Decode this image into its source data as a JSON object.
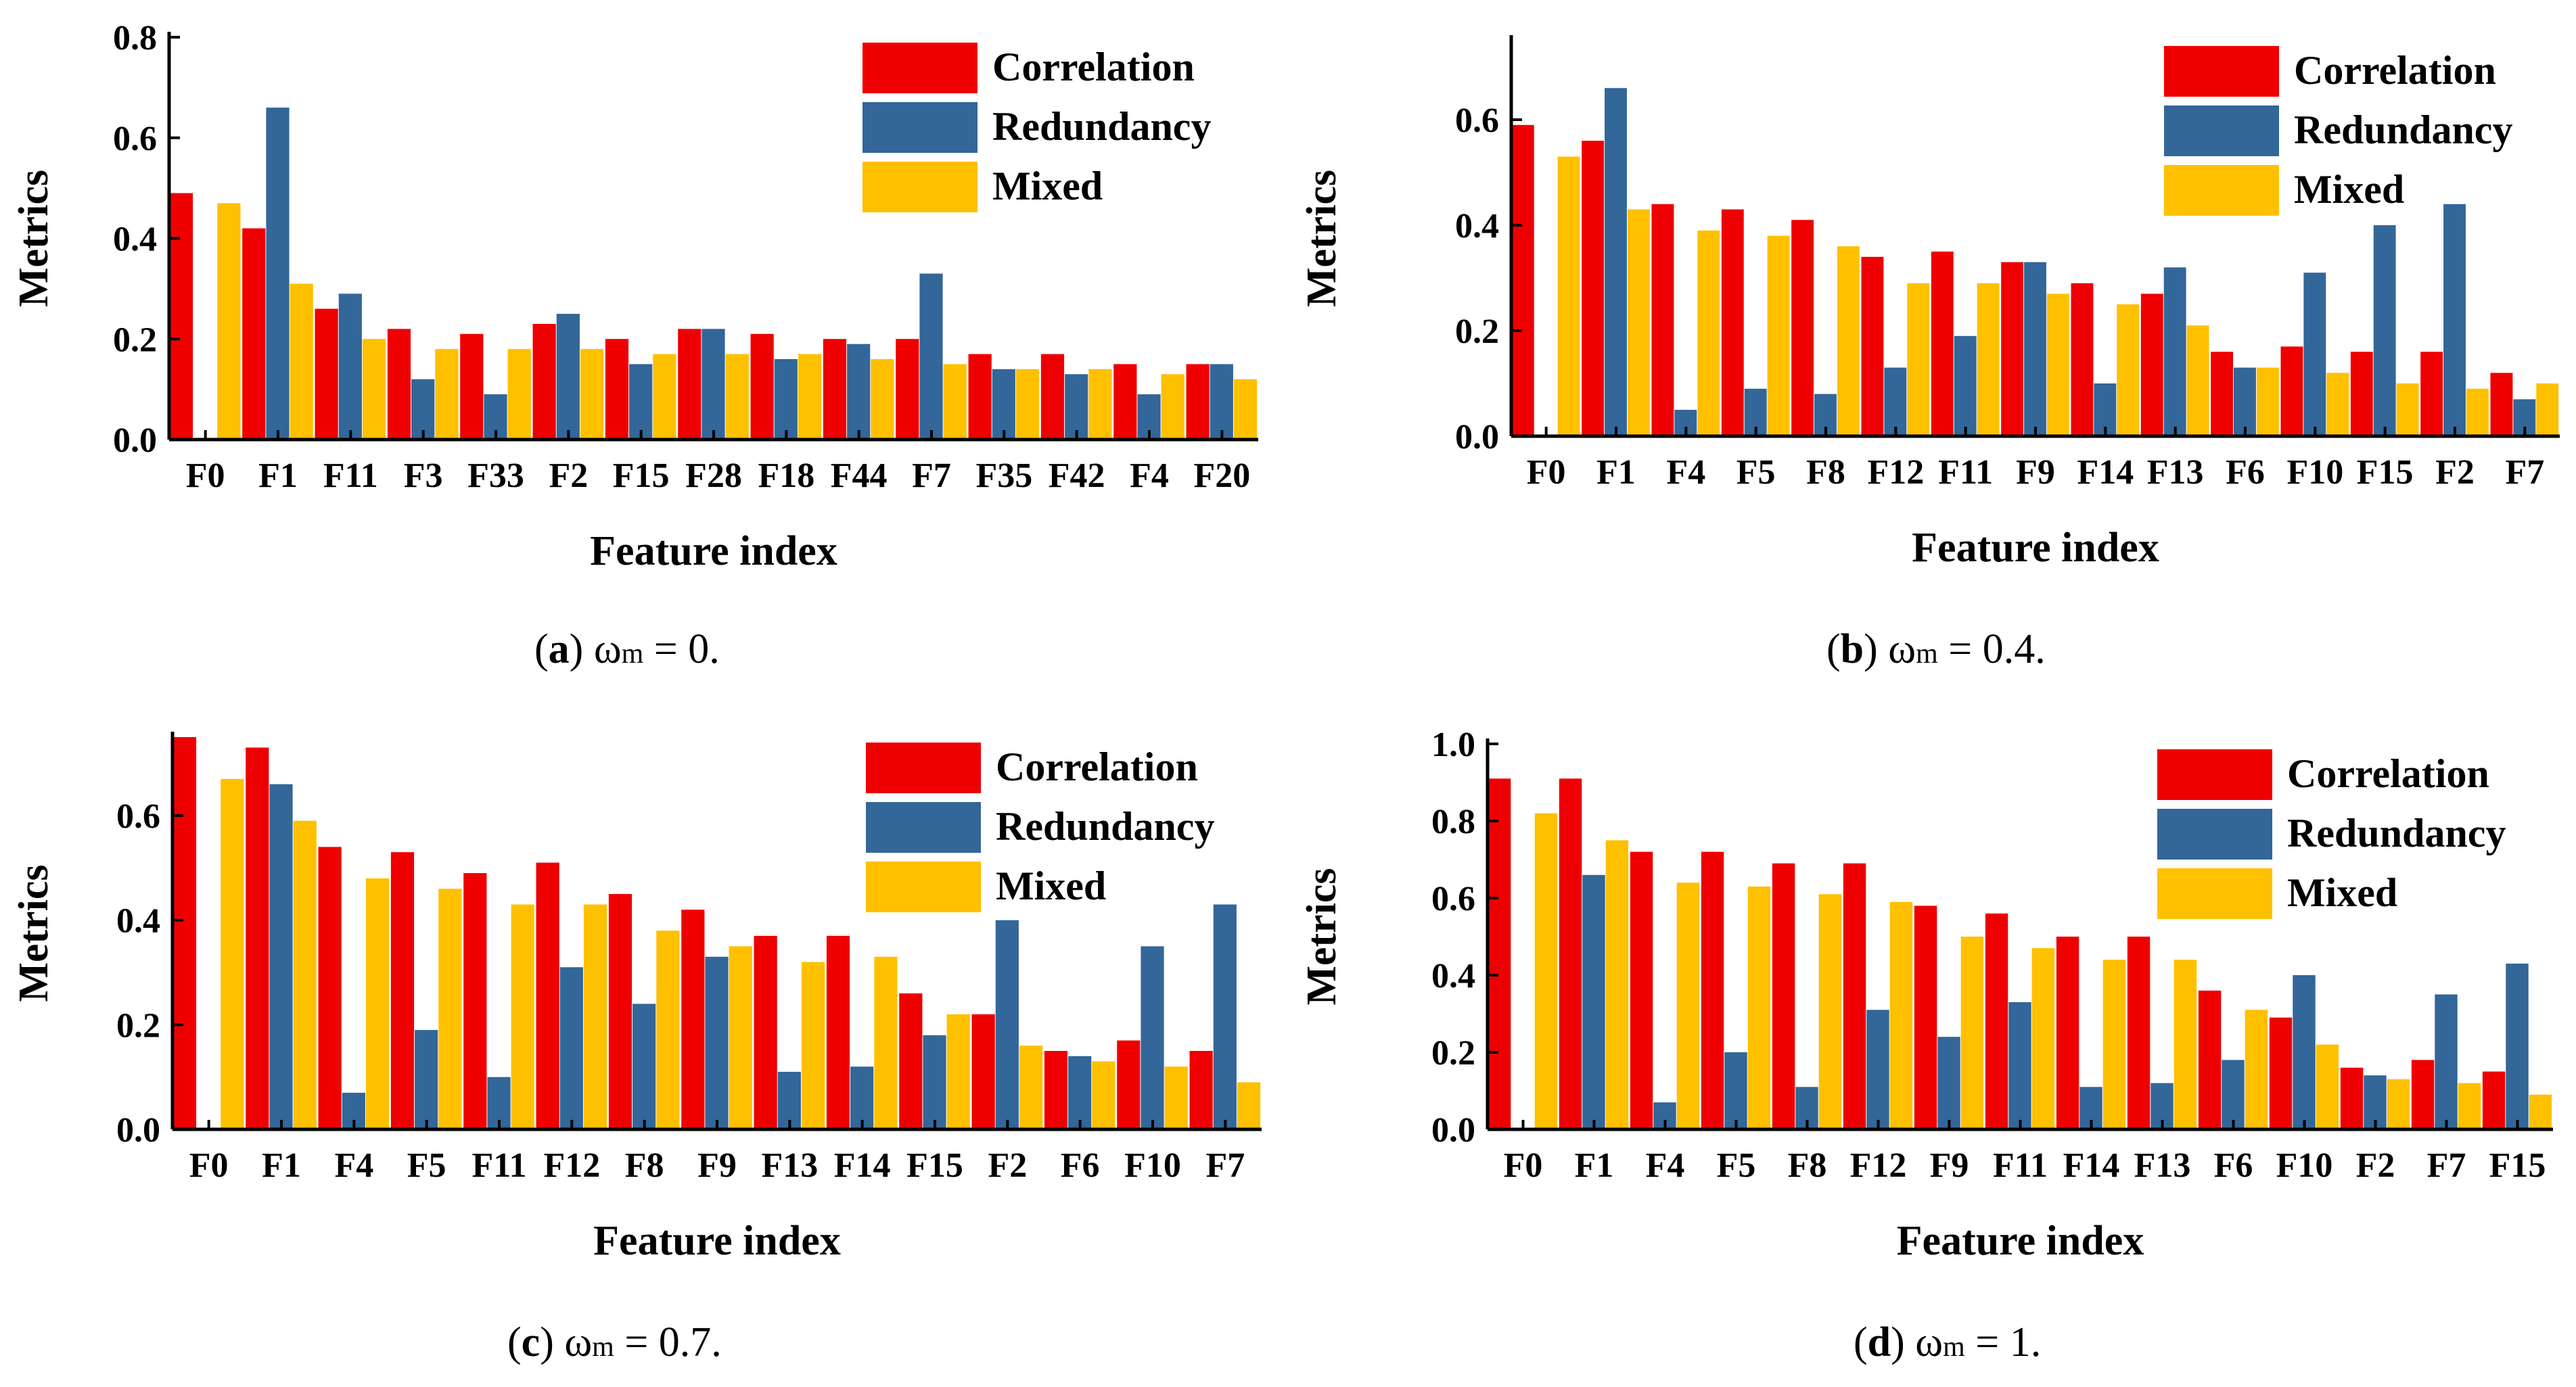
{
  "figure": {
    "colors": {
      "Correlation": "#ee0000",
      "Redundancy": "#336699",
      "Mixed": "#ffc000"
    }
  },
  "chart_data": [
    {
      "panel": "a",
      "type": "bar",
      "caption": {
        "letter": "a",
        "omega": "ω",
        "subscript": "m",
        "value": " = 0."
      },
      "xlabel": "Feature index",
      "ylabel": "Metrics",
      "ylim": [
        0,
        0.8
      ],
      "yticks": [
        "0.0",
        "0.2",
        "0.4",
        "0.6",
        "0.8"
      ],
      "categories": [
        "F0",
        "F1",
        "F11",
        "F3",
        "F33",
        "F2",
        "F15",
        "F28",
        "F18",
        "F44",
        "F7",
        "F35",
        "F42",
        "F4",
        "F20"
      ],
      "series": [
        {
          "name": "Correlation",
          "values": [
            0.49,
            0.42,
            0.26,
            0.22,
            0.21,
            0.23,
            0.2,
            0.22,
            0.21,
            0.2,
            0.2,
            0.17,
            0.17,
            0.15,
            0.15
          ]
        },
        {
          "name": "Redundancy",
          "values": [
            0.0,
            0.66,
            0.29,
            0.12,
            0.09,
            0.25,
            0.15,
            0.22,
            0.16,
            0.19,
            0.33,
            0.14,
            0.13,
            0.09,
            0.15
          ]
        },
        {
          "name": "Mixed",
          "values": [
            0.47,
            0.31,
            0.2,
            0.18,
            0.18,
            0.18,
            0.17,
            0.17,
            0.17,
            0.16,
            0.15,
            0.14,
            0.14,
            0.13,
            0.12
          ]
        }
      ],
      "legend": [
        "Correlation",
        "Redundancy",
        "Mixed"
      ]
    },
    {
      "panel": "b",
      "type": "bar",
      "caption": {
        "letter": "b",
        "omega": "ω",
        "subscript": "m",
        "value": " = 0.4."
      },
      "xlabel": "Feature index",
      "ylabel": "Metrics",
      "ylim": [
        0,
        0.75
      ],
      "yticks": [
        "0.0",
        "0.2",
        "0.4",
        "0.6"
      ],
      "categories": [
        "F0",
        "F1",
        "F4",
        "F5",
        "F8",
        "F12",
        "F11",
        "F9",
        "F14",
        "F13",
        "F6",
        "F10",
        "F15",
        "F2",
        "F7"
      ],
      "series": [
        {
          "name": "Correlation",
          "values": [
            0.59,
            0.56,
            0.44,
            0.43,
            0.41,
            0.34,
            0.35,
            0.33,
            0.29,
            0.27,
            0.16,
            0.17,
            0.16,
            0.16,
            0.12
          ]
        },
        {
          "name": "Redundancy",
          "values": [
            0.0,
            0.66,
            0.05,
            0.09,
            0.08,
            0.13,
            0.19,
            0.33,
            0.1,
            0.32,
            0.13,
            0.31,
            0.4,
            0.44,
            0.07
          ]
        },
        {
          "name": "Mixed",
          "values": [
            0.53,
            0.43,
            0.39,
            0.38,
            0.36,
            0.29,
            0.29,
            0.27,
            0.25,
            0.21,
            0.13,
            0.12,
            0.1,
            0.09,
            0.1
          ]
        }
      ],
      "legend": [
        "Correlation",
        "Redundancy",
        "Mixed"
      ]
    },
    {
      "panel": "c",
      "type": "bar",
      "caption": {
        "letter": "c",
        "omega": "ω",
        "subscript": "m",
        "value": " = 0.7."
      },
      "xlabel": "Feature index",
      "ylabel": "Metrics",
      "ylim": [
        0,
        0.75
      ],
      "yticks": [
        "0.0",
        "0.2",
        "0.4",
        "0.6"
      ],
      "categories": [
        "F0",
        "F1",
        "F4",
        "F5",
        "F11",
        "F12",
        "F8",
        "F9",
        "F13",
        "F14",
        "F15",
        "F2",
        "F6",
        "F10",
        "F7"
      ],
      "series": [
        {
          "name": "Correlation",
          "values": [
            0.75,
            0.73,
            0.54,
            0.53,
            0.49,
            0.51,
            0.45,
            0.42,
            0.37,
            0.37,
            0.26,
            0.22,
            0.15,
            0.17,
            0.15
          ]
        },
        {
          "name": "Redundancy",
          "values": [
            0.0,
            0.66,
            0.07,
            0.19,
            0.1,
            0.31,
            0.24,
            0.33,
            0.11,
            0.12,
            0.18,
            0.4,
            0.14,
            0.35,
            0.43
          ]
        },
        {
          "name": "Mixed",
          "values": [
            0.67,
            0.59,
            0.48,
            0.46,
            0.43,
            0.43,
            0.38,
            0.35,
            0.32,
            0.33,
            0.22,
            0.16,
            0.13,
            0.12,
            0.09
          ]
        }
      ],
      "legend": [
        "Correlation",
        "Redundancy",
        "Mixed"
      ]
    },
    {
      "panel": "d",
      "type": "bar",
      "caption": {
        "letter": "d",
        "omega": "ω",
        "subscript": "m",
        "value": " = 1."
      },
      "xlabel": "Feature index",
      "ylabel": "Metrics",
      "ylim": [
        0,
        1.0
      ],
      "yticks": [
        "0.0",
        "0.2",
        "0.4",
        "0.6",
        "0.8",
        "1.0"
      ],
      "categories": [
        "F0",
        "F1",
        "F4",
        "F5",
        "F8",
        "F12",
        "F9",
        "F11",
        "F14",
        "F13",
        "F6",
        "F10",
        "F2",
        "F7",
        "F15"
      ],
      "series": [
        {
          "name": "Correlation",
          "values": [
            0.91,
            0.91,
            0.72,
            0.72,
            0.69,
            0.69,
            0.58,
            0.56,
            0.5,
            0.5,
            0.36,
            0.29,
            0.16,
            0.18,
            0.15
          ]
        },
        {
          "name": "Redundancy",
          "values": [
            0.0,
            0.66,
            0.07,
            0.2,
            0.11,
            0.31,
            0.24,
            0.33,
            0.11,
            0.12,
            0.18,
            0.4,
            0.14,
            0.35,
            0.43
          ]
        },
        {
          "name": "Mixed",
          "values": [
            0.82,
            0.75,
            0.64,
            0.63,
            0.61,
            0.59,
            0.5,
            0.47,
            0.44,
            0.44,
            0.31,
            0.22,
            0.13,
            0.12,
            0.09
          ]
        }
      ],
      "legend": [
        "Correlation",
        "Redundancy",
        "Mixed"
      ]
    }
  ]
}
